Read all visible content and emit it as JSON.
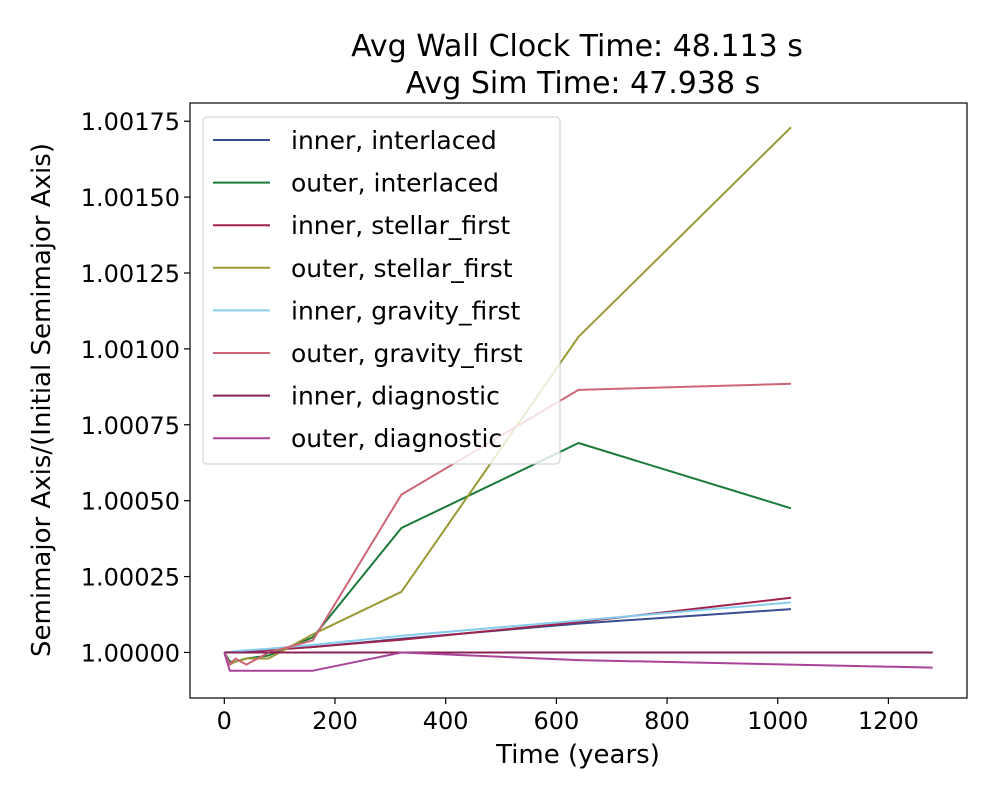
{
  "chart_data": {
    "type": "line",
    "title": "Avg Wall Clock Time: 48.113 s",
    "subtitle": "Avg Sim Time: 47.938 s",
    "xlabel": "Time (years)",
    "ylabel": "Semimajor Axis/(Initial Semimajor Axis)",
    "xlim": [
      -62,
      1342
    ],
    "ylim": [
      0.99985,
      1.00181
    ],
    "xticks": [
      0,
      200,
      400,
      600,
      800,
      1000,
      1200
    ],
    "xtick_labels": [
      "0",
      "200",
      "400",
      "600",
      "800",
      "1000",
      "1200"
    ],
    "yticks": [
      1.0,
      1.00025,
      1.0005,
      1.00075,
      1.001,
      1.00125,
      1.0015,
      1.00175
    ],
    "ytick_labels": [
      "1.00000",
      "1.00025",
      "1.00050",
      "1.00075",
      "1.00100",
      "1.00125",
      "1.00150",
      "1.00175"
    ],
    "grid": false,
    "legend_position": "top-left",
    "series": [
      {
        "name": "inner, interlaced",
        "color": "#3a4d92",
        "x": [
          0,
          10,
          20,
          40,
          80,
          160,
          320,
          640,
          1024
        ],
        "y": [
          1.0,
          1.0,
          1.000002,
          1.000004,
          1.000008,
          1.000018,
          1.000045,
          1.000095,
          1.000143
        ]
      },
      {
        "name": "outer, interlaced",
        "color": "#1a7a3a",
        "x": [
          0,
          10,
          20,
          40,
          80,
          160,
          320,
          640,
          1024
        ],
        "y": [
          1.0,
          0.99997,
          0.99997,
          0.99998,
          0.99999,
          1.00005,
          1.00041,
          1.00069,
          1.000475
        ]
      },
      {
        "name": "inner, stellar_first",
        "color": "#a0224d",
        "x": [
          0,
          10,
          20,
          40,
          80,
          160,
          320,
          640,
          1024
        ],
        "y": [
          1.0,
          1.0,
          1.000002,
          1.000004,
          1.000008,
          1.000018,
          1.000042,
          1.0001,
          1.00018
        ]
      },
      {
        "name": "outer, stellar_first",
        "color": "#999933",
        "x": [
          0,
          10,
          20,
          40,
          80,
          160,
          320,
          640,
          1024
        ],
        "y": [
          1.0,
          0.99996,
          0.99997,
          0.99998,
          0.99998,
          1.00006,
          1.0002,
          1.00104,
          1.00173
        ]
      },
      {
        "name": "inner, gravity_first",
        "color": "#88ccee",
        "x": [
          0,
          10,
          20,
          40,
          80,
          160,
          320,
          640,
          1024
        ],
        "y": [
          1.0,
          1.000002,
          1.000004,
          1.000007,
          1.000012,
          1.000025,
          1.000055,
          1.000105,
          1.000165
        ]
      },
      {
        "name": "outer, gravity_first",
        "color": "#cc6677",
        "x": [
          0,
          10,
          20,
          40,
          80,
          160,
          320,
          640,
          1024
        ],
        "y": [
          1.0,
          0.99996,
          0.99998,
          0.99996,
          1.0,
          1.00004,
          1.00052,
          1.000865,
          1.000885
        ]
      },
      {
        "name": "inner, diagnostic",
        "color": "#882255",
        "x": [
          0,
          10,
          20,
          40,
          80,
          160,
          320,
          640,
          1280
        ],
        "y": [
          1.0,
          1.0,
          1.0,
          1.0,
          1.0,
          1.0,
          1.0,
          1.0,
          1.0
        ]
      },
      {
        "name": "outer, diagnostic",
        "color": "#aa4499",
        "x": [
          0,
          10,
          20,
          40,
          80,
          160,
          320,
          640,
          1280
        ],
        "y": [
          1.0,
          0.99994,
          0.99994,
          0.99994,
          0.99994,
          0.99994,
          1.0,
          0.999975,
          0.99995
        ]
      }
    ]
  }
}
